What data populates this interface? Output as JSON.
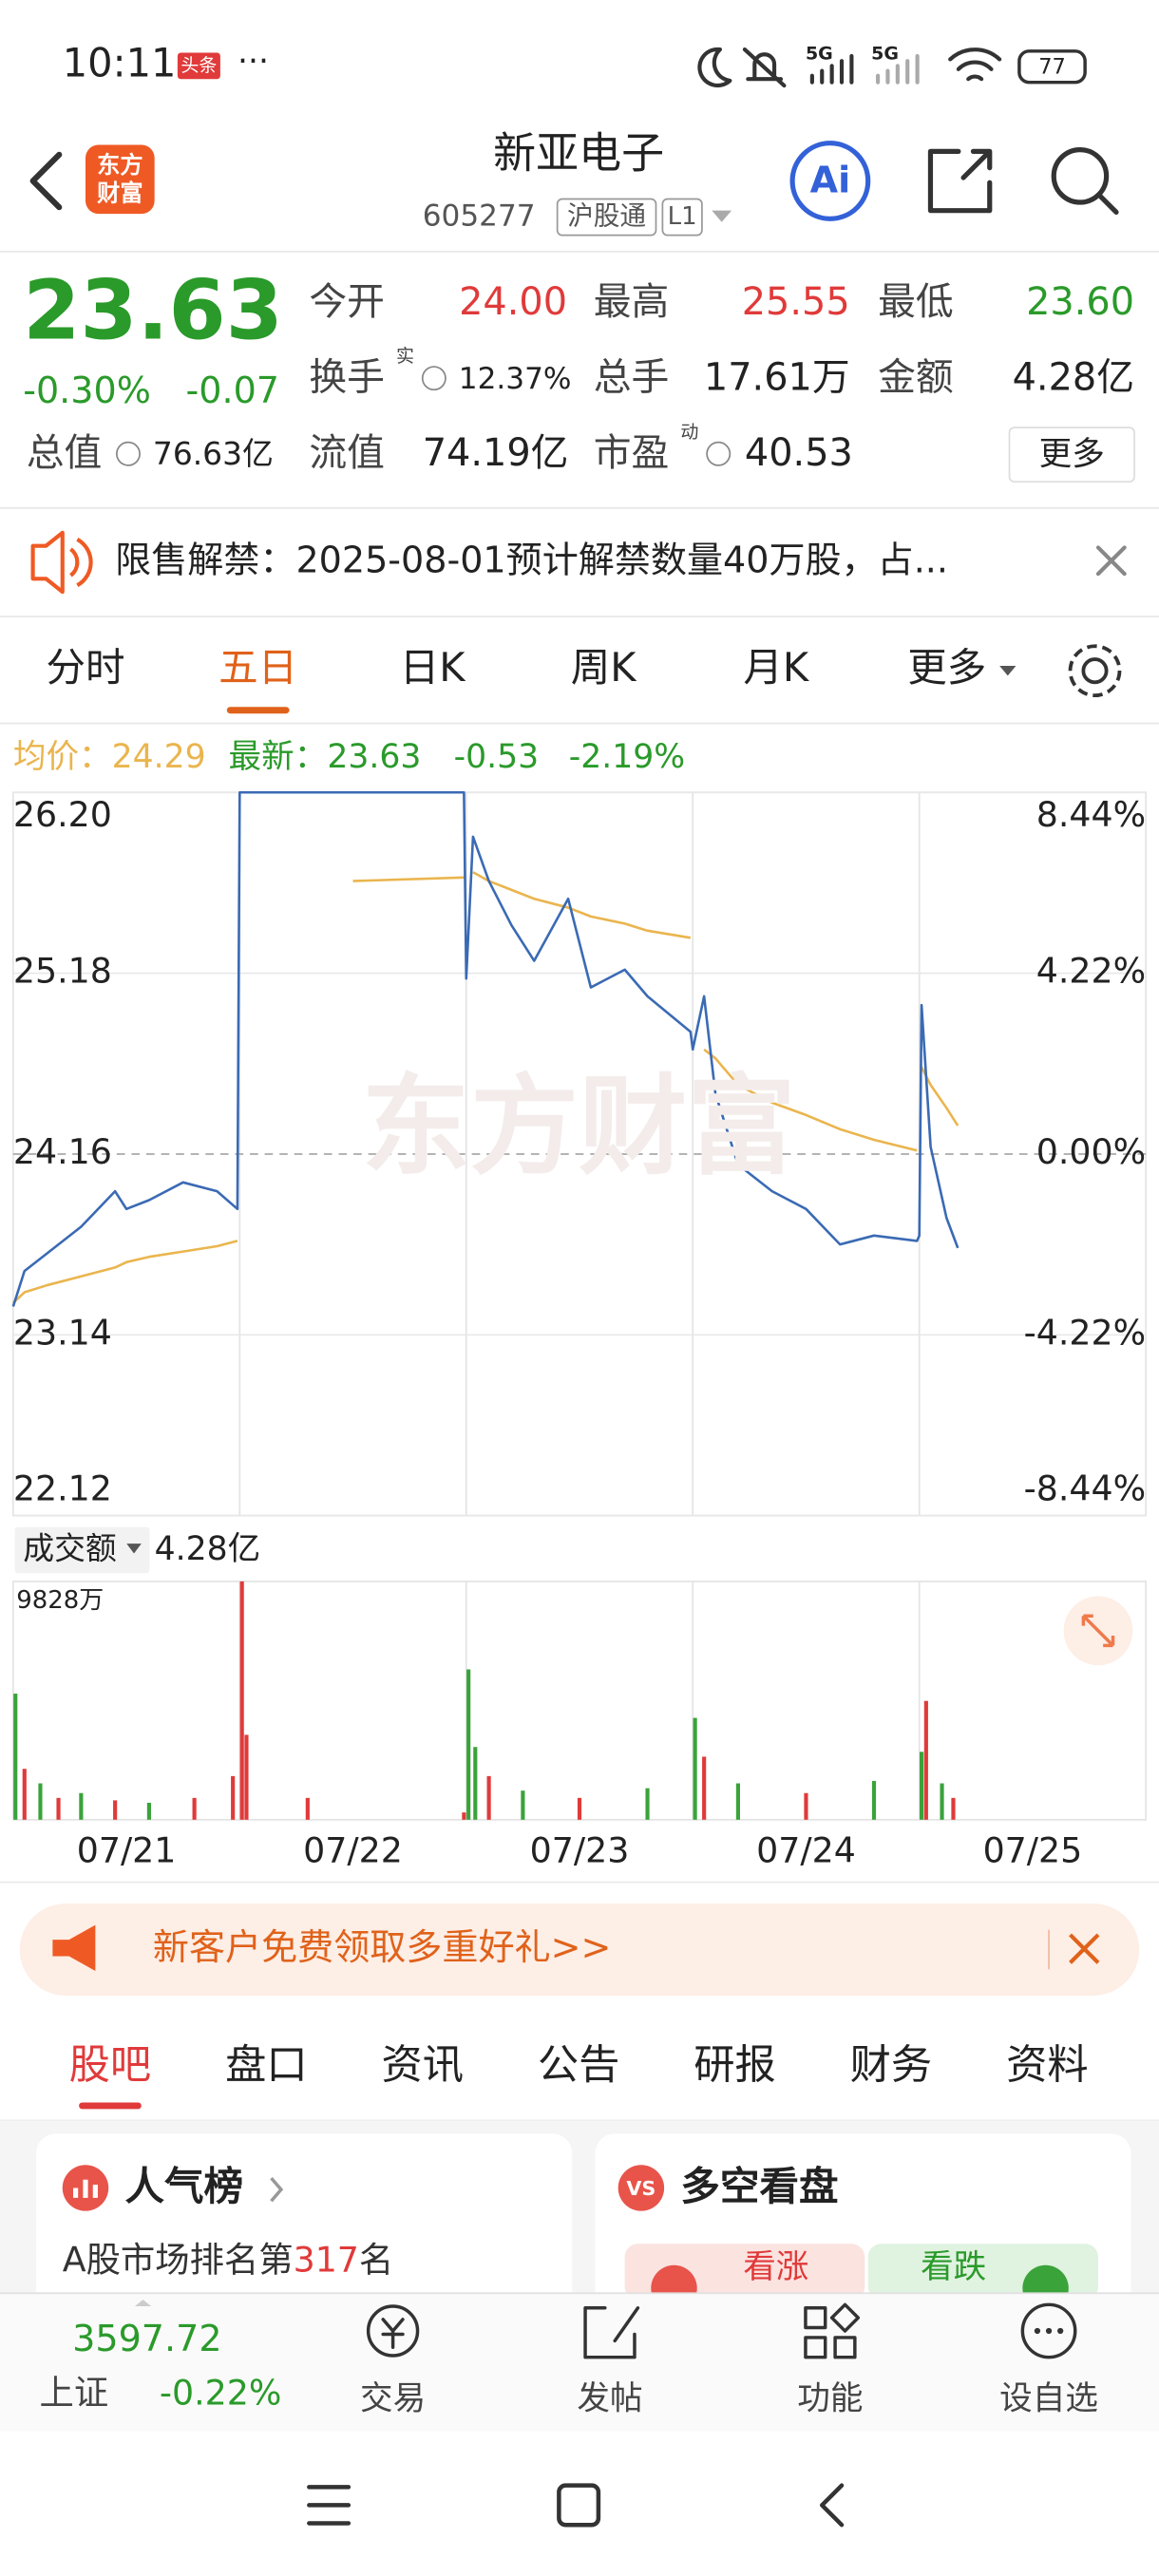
{
  "status_bar": {
    "time": "10:11",
    "badge": "头条",
    "network": [
      "5G",
      "5G"
    ],
    "battery": "77"
  },
  "header": {
    "logo": [
      "东方",
      "财富"
    ],
    "title": "新亚电子",
    "code": "605277",
    "market": "沪股通",
    "level": "L1",
    "ai": "Ai"
  },
  "quote": {
    "price": "23.63",
    "change_pct": "-0.30%",
    "change": "-0.07",
    "fields": [
      {
        "label": "今开",
        "value": "24.00"
      },
      {
        "label": "最高",
        "value": "25.55"
      },
      {
        "label": "最低",
        "value": "23.60"
      },
      {
        "label": "换手",
        "sup": "实",
        "value": "12.37%"
      },
      {
        "label": "总手",
        "value": "17.61万"
      },
      {
        "label": "金额",
        "value": "4.28亿"
      },
      {
        "label": "总值",
        "value": "76.63亿"
      },
      {
        "label": "流值",
        "value": "74.19亿"
      },
      {
        "label": "市盈",
        "sup": "动",
        "value": "40.53"
      }
    ],
    "more": "更多"
  },
  "notice": {
    "text": "限售解禁：2025-08-01预计解禁数量40万股，占..."
  },
  "chart_tabs": [
    "分时",
    "五日",
    "日K",
    "周K",
    "月K",
    "更多"
  ],
  "chart_info": {
    "avg": "均价：24.29",
    "latest": "最新：23.63",
    "change": "-0.53",
    "change_pct": "-2.19%"
  },
  "watermark": "东方财富",
  "chart_data": [
    {
      "type": "line",
      "x": [
        0,
        0.05,
        0.15,
        0.3,
        0.45,
        0.5,
        0.6,
        0.75,
        0.9,
        0.99,
        1.0,
        1.5,
        1.99,
        2.0,
        2.03,
        2.1,
        2.2,
        2.3,
        2.45,
        2.55,
        2.7,
        2.8,
        2.99,
        3.0,
        3.05,
        3.1,
        3.2,
        3.35,
        3.5,
        3.65,
        3.8,
        3.99,
        4.0,
        4.01,
        4.05,
        4.12,
        4.17
      ],
      "xlim": [
        0,
        5
      ],
      "ylim": [
        22.12,
        26.2
      ],
      "yticks": [
        {
          "value": 26.2,
          "label": "26.20"
        },
        {
          "value": 25.18,
          "label": "25.18"
        },
        {
          "value": 24.16,
          "label": "24.16"
        },
        {
          "value": 23.14,
          "label": "23.14"
        },
        {
          "value": 22.12,
          "label": "22.12"
        }
      ],
      "y2lim": [
        -8.44,
        8.44
      ],
      "y2ticks": [
        {
          "value": 8.44,
          "label": "8.44%"
        },
        {
          "value": 4.22,
          "label": "4.22%"
        },
        {
          "value": 0,
          "label": "0.00%"
        },
        {
          "value": -4.22,
          "label": "-4.22%"
        },
        {
          "value": -8.44,
          "label": "-8.44%"
        }
      ],
      "series": [
        {
          "color": "#3a6ab4",
          "values": [
            23.3,
            23.5,
            23.6,
            23.75,
            23.95,
            23.85,
            23.9,
            24.0,
            23.95,
            23.85,
            26.2,
            26.2,
            26.2,
            25.15,
            25.95,
            25.7,
            25.45,
            25.25,
            25.6,
            25.1,
            25.2,
            25.05,
            24.85,
            24.75,
            25.05,
            24.5,
            24.1,
            23.95,
            23.85,
            23.65,
            23.7,
            23.67,
            23.7,
            25.0,
            24.2,
            23.8,
            23.63
          ]
        },
        {
          "color": "#eab54e",
          "values": [
            23.32,
            23.38,
            23.42,
            23.47,
            23.52,
            23.55,
            23.58,
            23.61,
            23.64,
            23.67,
            null,
            25.7,
            25.72,
            null,
            25.75,
            25.7,
            25.65,
            25.6,
            25.55,
            25.5,
            25.46,
            25.42,
            25.38,
            null,
            24.75,
            24.7,
            24.55,
            24.45,
            24.38,
            24.3,
            24.24,
            24.18,
            null,
            24.65,
            24.55,
            24.42,
            24.32
          ]
        }
      ]
    },
    {
      "type": "bar",
      "title": "成交额",
      "subtitle": "4.28亿",
      "x": [
        0.01,
        0.05,
        0.12,
        0.2,
        0.3,
        0.45,
        0.6,
        0.8,
        0.97,
        1.01,
        1.03,
        1.3,
        1.99,
        2.01,
        2.04,
        2.1,
        2.25,
        2.5,
        2.8,
        3.01,
        3.05,
        3.2,
        3.5,
        3.8,
        4.01,
        4.03,
        4.1,
        4.15
      ],
      "values": [
        5200,
        2100,
        1500,
        900,
        1100,
        800,
        700,
        900,
        1800,
        9828,
        3500,
        900,
        300,
        6200,
        3000,
        1800,
        1200,
        900,
        1300,
        4200,
        2600,
        1500,
        1100,
        1600,
        2800,
        4900,
        1500,
        900
      ],
      "colors": [
        "#3aa33a",
        "#e03a3a",
        "#3aa33a",
        "#e03a3a",
        "#3aa33a",
        "#e03a3a",
        "#3aa33a",
        "#e03a3a",
        "#e03a3a",
        "#e03a3a",
        "#e03a3a",
        "#e03a3a",
        "#e03a3a",
        "#3aa33a",
        "#3aa33a",
        "#e03a3a",
        "#3aa33a",
        "#e03a3a",
        "#3aa33a",
        "#3aa33a",
        "#e03a3a",
        "#3aa33a",
        "#e03a3a",
        "#3aa33a",
        "#3aa33a",
        "#e03a3a",
        "#3aa33a",
        "#e03a3a"
      ],
      "xlim": [
        0,
        5
      ],
      "ylim": [
        0,
        9828
      ],
      "yticks": [
        {
          "value": 9828,
          "label": "9828万"
        }
      ],
      "xticks": [
        {
          "value": 0.5,
          "label": "07/21"
        },
        {
          "value": 1.5,
          "label": "07/22"
        },
        {
          "value": 2.5,
          "label": "07/23"
        },
        {
          "value": 3.5,
          "label": "07/24"
        },
        {
          "value": 4.5,
          "label": "07/25"
        }
      ]
    }
  ],
  "promo": {
    "text": "新客户免费领取多重好礼>>"
  },
  "tabs": [
    "股吧",
    "盘口",
    "资讯",
    "公告",
    "研报",
    "财务",
    "资料"
  ],
  "cards": {
    "popularity": {
      "title": "人气榜",
      "text": "A股市场排名第",
      "rank": "317",
      "unit": "名"
    },
    "sentiment": {
      "icon": "VS",
      "title": "多空看盘",
      "up": "看涨",
      "down": "看跌"
    }
  },
  "bottom_bar": {
    "index_value": "3597.72",
    "index_name": "上证",
    "index_change": "-0.22%",
    "items": [
      "交易",
      "发帖",
      "功能",
      "设自选"
    ]
  }
}
